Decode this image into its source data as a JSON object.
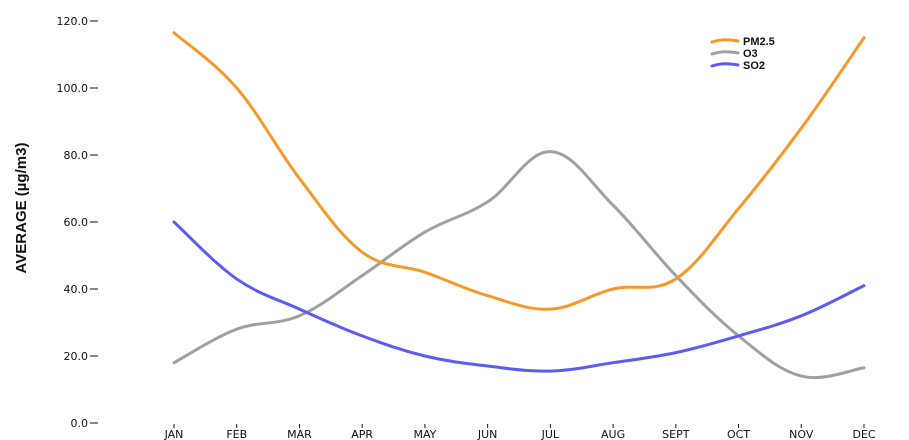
{
  "chart_data": {
    "type": "line",
    "title": "",
    "xlabel": "",
    "ylabel": "AVERAGE (µg/m3)",
    "categories": [
      "JAN",
      "FEB",
      "MAR",
      "APR",
      "MAY",
      "JUN",
      "JUL",
      "AUG",
      "SEPT",
      "OCT",
      "NOV",
      "DEC"
    ],
    "y_ticks": [
      "0.0",
      "20.0",
      "40.0",
      "60.0",
      "80.0",
      "100.0",
      "120.0"
    ],
    "ylim": [
      0,
      120
    ],
    "grid": false,
    "legend_position": "top-right",
    "series": [
      {
        "name": "PM2.5",
        "color": "#F59A2A",
        "values": [
          116.5,
          100,
          73,
          51,
          45,
          38,
          34,
          40,
          43,
          64,
          88,
          115
        ]
      },
      {
        "name": "O3",
        "color": "#A0A0A0",
        "values": [
          18,
          28,
          32,
          44,
          57,
          66,
          81,
          65,
          44,
          26,
          14,
          16.5
        ]
      },
      {
        "name": "SO2",
        "color": "#5C5CF2",
        "values": [
          60,
          43,
          34,
          26,
          20,
          17,
          15.5,
          18,
          21,
          26,
          32,
          41
        ]
      }
    ]
  }
}
